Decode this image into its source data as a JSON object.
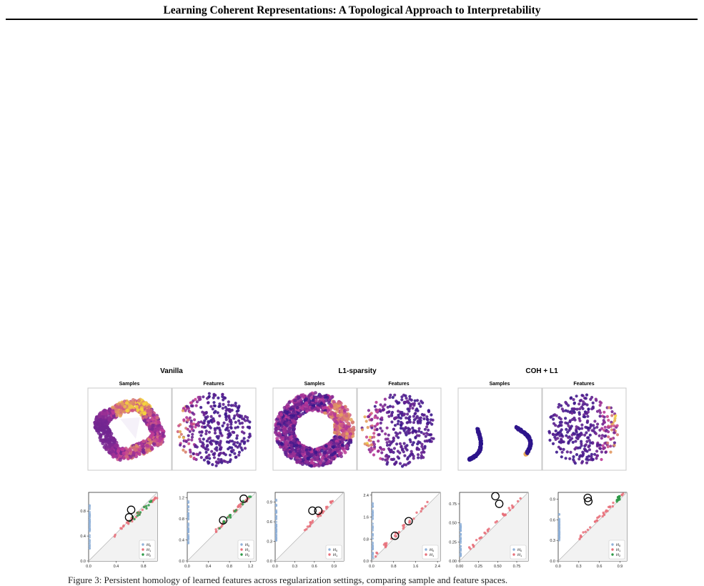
{
  "header": {
    "title": "Learning Coherent Representations: A Topological Approach to Interpretability"
  },
  "groups": [
    {
      "title": "Vanilla",
      "samples_label": "Samples",
      "features_label": "Features"
    },
    {
      "title": "L1-sparsity",
      "samples_label": "Samples",
      "features_label": "Features"
    },
    {
      "title": "COH + L1",
      "samples_label": "Samples",
      "features_label": "Features"
    }
  ],
  "colors": {
    "H0": "#8fb0d8",
    "H1": "#e8707a",
    "H2": "#2e9a48",
    "cmap_low": "#1f118a",
    "cmap_mid": "#c23a98",
    "cmap_high": "#f6d93a"
  },
  "chart_data": [
    {
      "type": "scatter",
      "title": "",
      "xlim": [
        0,
        1.0
      ],
      "ylim": [
        0,
        1.1
      ],
      "xticks": [
        "0.0",
        "0.4",
        "0.8"
      ],
      "yticks": [
        "0.0",
        "0.4",
        "0.8"
      ],
      "legend": [
        "H0",
        "H1",
        "H2"
      ],
      "legend_position": "bottom-right",
      "circled": [
        [
          0.62,
          0.82
        ],
        [
          0.59,
          0.7
        ]
      ],
      "series": [
        {
          "dim": "H0",
          "x": 0,
          "y_range": [
            0.2,
            0.9
          ]
        },
        {
          "dim": "H1",
          "x_range": [
            0.35,
            1.0
          ]
        },
        {
          "dim": "H2",
          "x_range": [
            0.6,
            0.95
          ]
        }
      ]
    },
    {
      "type": "scatter",
      "title": "",
      "xlim": [
        0,
        1.3
      ],
      "ylim": [
        0,
        1.3
      ],
      "xticks": [
        "0.0",
        "0.4",
        "0.8",
        "1.2"
      ],
      "yticks": [
        "0.0",
        "0.4",
        "0.8",
        "1.2"
      ],
      "legend": [
        "H0",
        "H1",
        "H2"
      ],
      "legend_position": "bottom-right",
      "circled": [
        [
          1.07,
          1.18
        ],
        [
          0.68,
          0.77
        ]
      ],
      "series": [
        {
          "dim": "H0",
          "x": 0,
          "y_range": [
            0.3,
            1.15
          ]
        },
        {
          "dim": "H1",
          "x_range": [
            0.5,
            1.2
          ]
        },
        {
          "dim": "H2",
          "x_range": [
            0.6,
            1.22
          ]
        }
      ]
    },
    {
      "type": "scatter",
      "title": "",
      "xlim": [
        0,
        1.05
      ],
      "ylim": [
        0,
        1.05
      ],
      "xticks": [
        "0.0",
        "0.3",
        "0.6",
        "0.9"
      ],
      "yticks": [
        "0.0",
        "0.3",
        "0.6",
        "0.9"
      ],
      "legend": [
        "H0",
        "H1"
      ],
      "legend_position": "bottom-right",
      "circled": [
        [
          0.57,
          0.77
        ],
        [
          0.66,
          0.77
        ]
      ],
      "series": [
        {
          "dim": "H0",
          "x": 0,
          "y_range": [
            0.3,
            0.95
          ]
        },
        {
          "dim": "H1",
          "x_range": [
            0.45,
            0.9
          ]
        }
      ]
    },
    {
      "type": "scatter",
      "title": "",
      "xlim": [
        0,
        2.5
      ],
      "ylim": [
        0,
        2.5
      ],
      "xticks": [
        "0.0",
        "0.8",
        "1.6",
        "2.4"
      ],
      "yticks": [
        "0.0",
        "0.8",
        "1.6",
        "2.4"
      ],
      "legend": [
        "H0",
        "H1"
      ],
      "legend_position": "bottom-right",
      "circled": [
        [
          0.85,
          0.92
        ],
        [
          1.35,
          1.45
        ]
      ],
      "series": [
        {
          "dim": "H0",
          "x": 0,
          "y_range": [
            0.1,
            2.3
          ]
        },
        {
          "dim": "H1",
          "x_range": [
            0.1,
            2.1
          ]
        }
      ]
    },
    {
      "type": "scatter",
      "title": "",
      "xlim": [
        0,
        0.9
      ],
      "ylim": [
        0,
        0.9
      ],
      "xticks": [
        "0.00",
        "0.25",
        "0.50",
        "0.75"
      ],
      "yticks": [
        "0.00",
        "0.25",
        "0.50",
        "0.75"
      ],
      "legend": [
        "H0",
        "H1"
      ],
      "legend_position": "bottom-right",
      "circled": [
        [
          0.47,
          0.85
        ],
        [
          0.52,
          0.75
        ]
      ],
      "series": [
        {
          "dim": "H0",
          "x": 0,
          "y_range": [
            0.05,
            0.5
          ]
        },
        {
          "dim": "H1",
          "x_range": [
            0.1,
            0.8
          ]
        }
      ]
    },
    {
      "type": "scatter",
      "title": "",
      "xlim": [
        0,
        1.0
      ],
      "ylim": [
        0,
        1.0
      ],
      "xticks": [
        "0.0",
        "0.3",
        "0.6",
        "0.9"
      ],
      "yticks": [
        "0.0",
        "0.3",
        "0.6",
        "0.9"
      ],
      "legend": [
        "H0",
        "H1",
        "H2"
      ],
      "legend_position": "bottom-right",
      "circled": [
        [
          0.43,
          0.92
        ],
        [
          0.44,
          0.87
        ]
      ],
      "series": [
        {
          "dim": "H0",
          "x": 0,
          "y_range": [
            0.3,
            0.7
          ]
        },
        {
          "dim": "H1",
          "x_range": [
            0.3,
            0.95
          ]
        },
        {
          "dim": "H2",
          "x_range": [
            0.85,
            0.9
          ]
        }
      ]
    }
  ],
  "caption": {
    "text": "Figure 3: Persistent homology of learned features across regularization settings, comparing sample and feature spaces."
  }
}
